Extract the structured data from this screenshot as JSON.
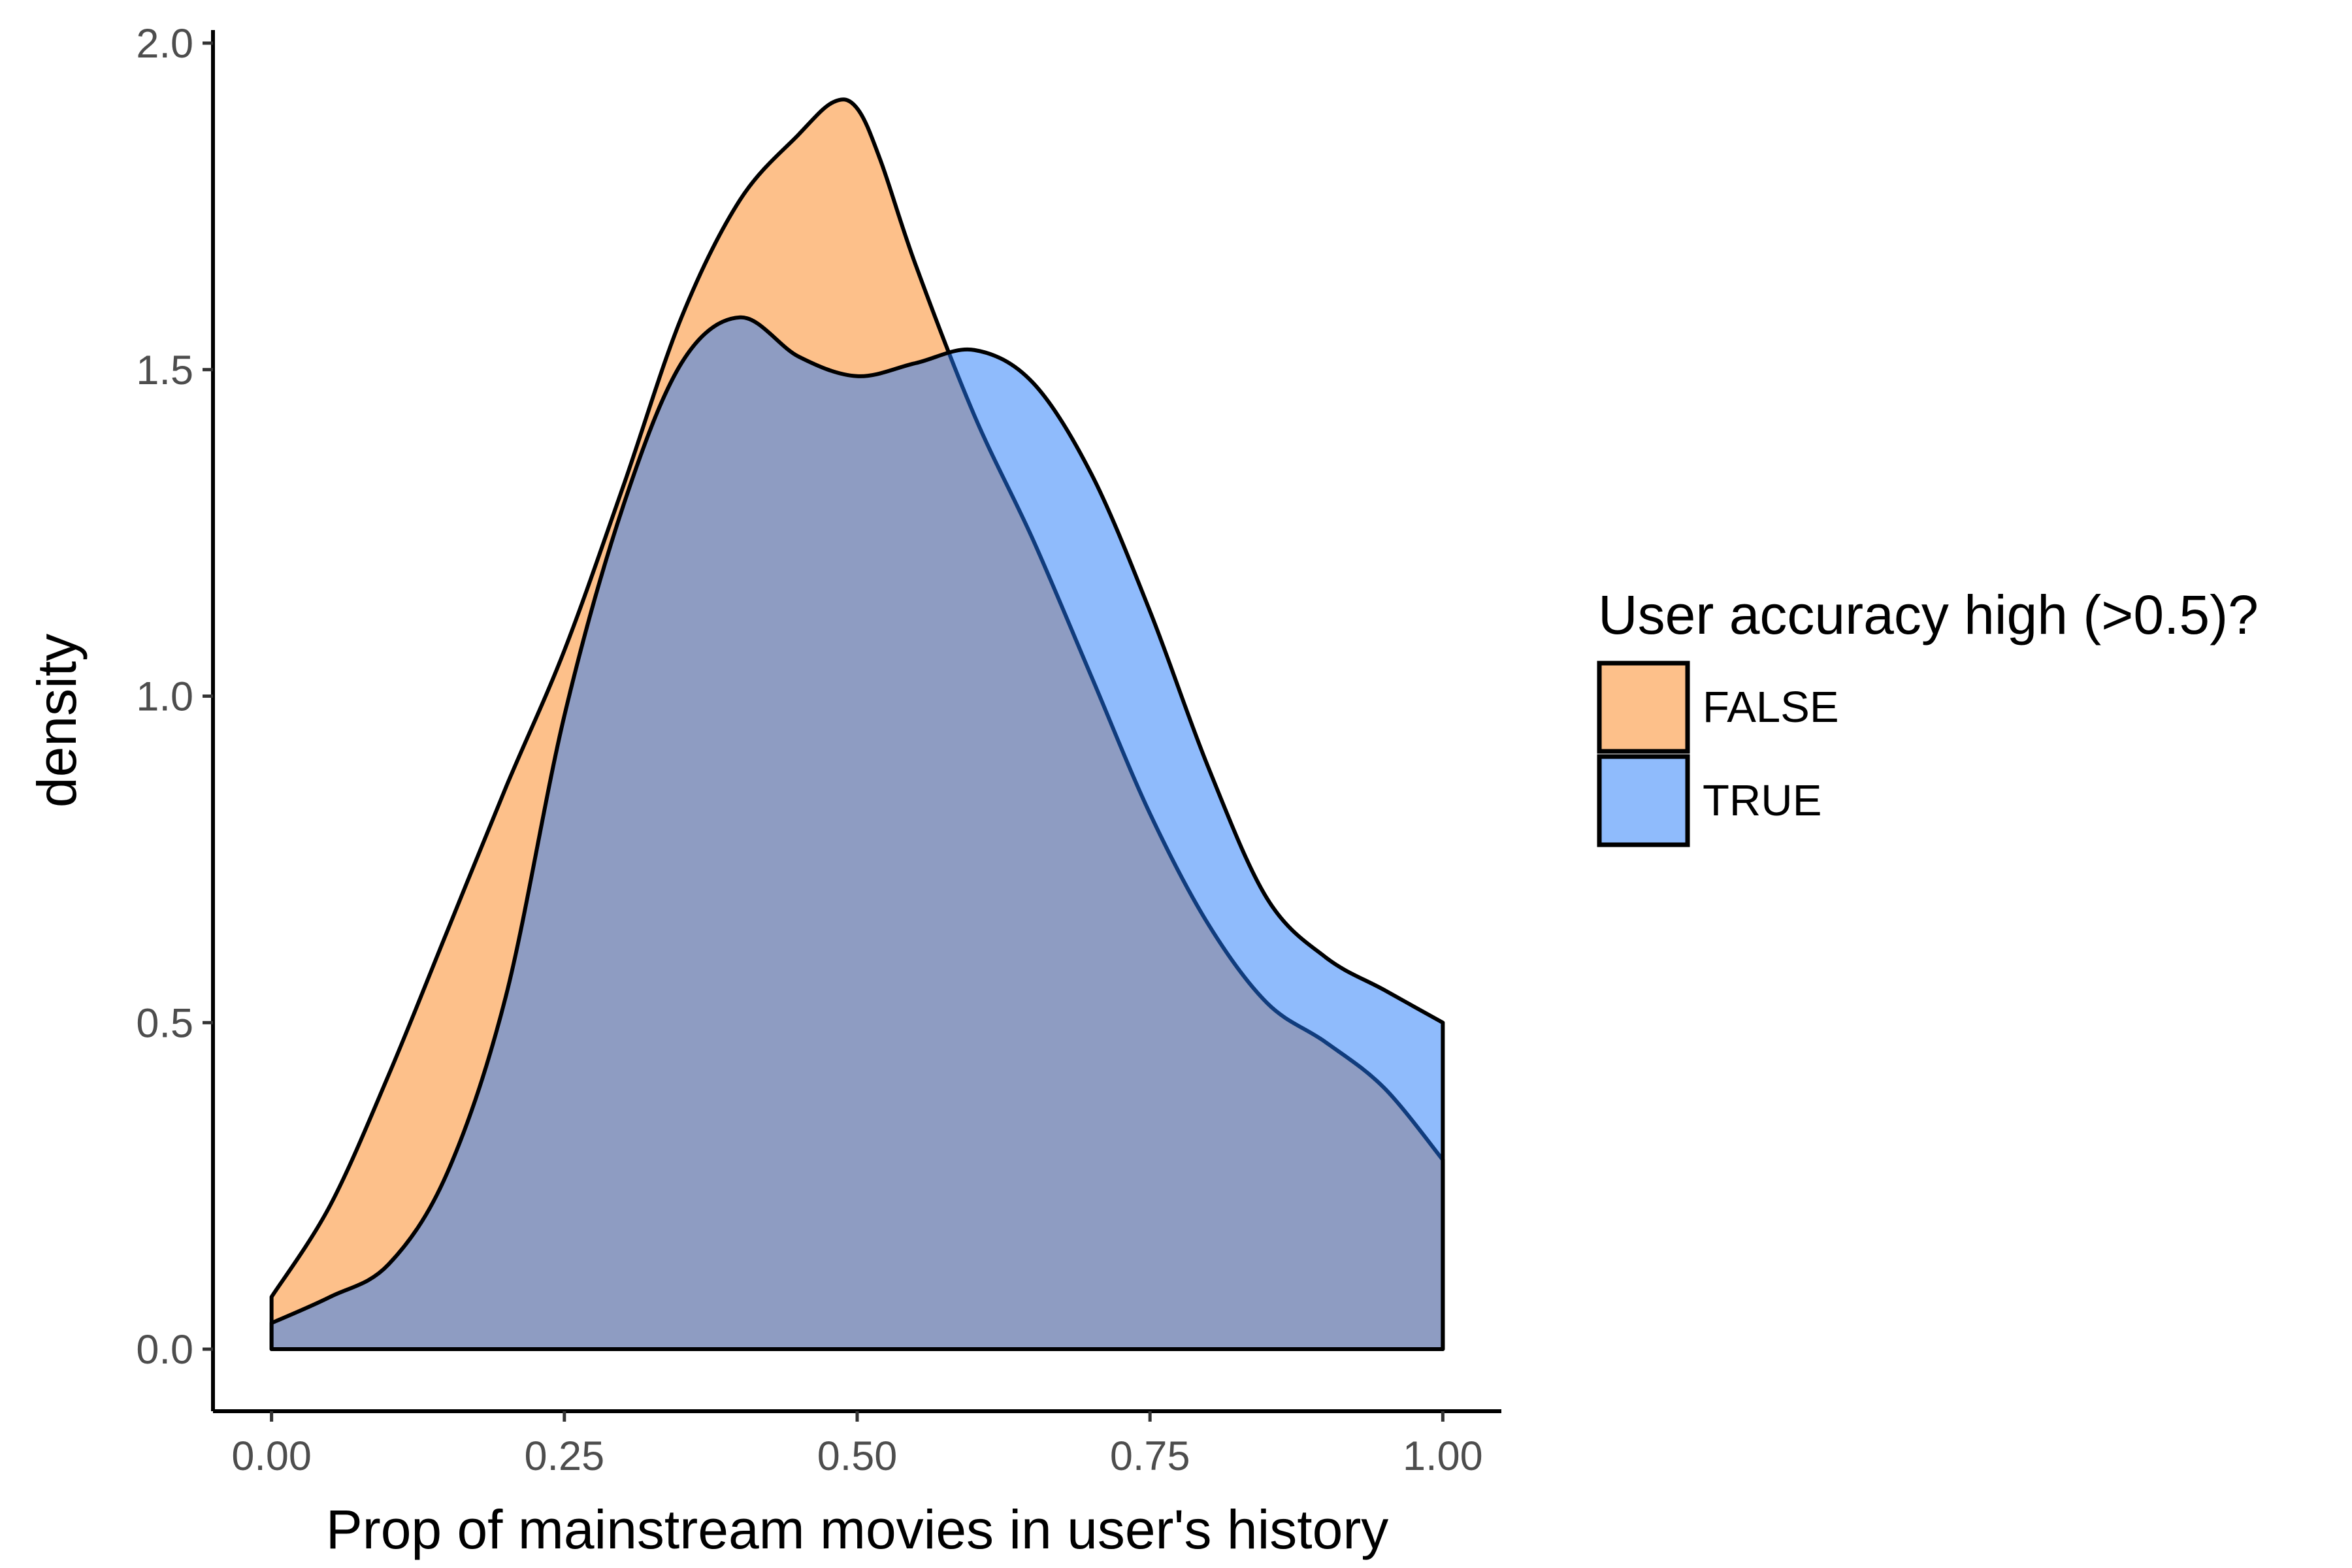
{
  "chart_data": {
    "type": "area",
    "subtype": "density",
    "xlabel": "Prop of mainstream movies in user's history",
    "ylabel": "density",
    "xlim": [
      -0.05,
      1.05
    ],
    "ylim": [
      -0.095,
      2.02
    ],
    "x_ticks": [
      {
        "value": 0.0,
        "label": "0.00"
      },
      {
        "value": 0.25,
        "label": "0.25"
      },
      {
        "value": 0.5,
        "label": "0.50"
      },
      {
        "value": 0.75,
        "label": "0.75"
      },
      {
        "value": 1.0,
        "label": "1.00"
      }
    ],
    "y_ticks": [
      {
        "value": 0.0,
        "label": "0.0"
      },
      {
        "value": 0.5,
        "label": "0.5"
      },
      {
        "value": 1.0,
        "label": "1.0"
      },
      {
        "value": 1.5,
        "label": "1.5"
      },
      {
        "value": 2.0,
        "label": "2.0"
      }
    ],
    "grid": false,
    "legend": {
      "title": "User accuracy high (>0.5)?",
      "position": "right"
    },
    "series": [
      {
        "name": "FALSE",
        "color": "#fc8d29",
        "opacity": 0.55,
        "x": [
          0.0,
          0.05,
          0.1,
          0.15,
          0.2,
          0.25,
          0.3,
          0.35,
          0.4,
          0.45,
          0.48,
          0.5,
          0.52,
          0.55,
          0.6,
          0.65,
          0.7,
          0.75,
          0.8,
          0.85,
          0.9,
          0.95,
          1.0
        ],
        "y": [
          0.08,
          0.22,
          0.42,
          0.64,
          0.86,
          1.07,
          1.32,
          1.58,
          1.76,
          1.86,
          1.91,
          1.9,
          1.82,
          1.66,
          1.43,
          1.24,
          1.03,
          0.82,
          0.65,
          0.53,
          0.47,
          0.4,
          0.29
        ]
      },
      {
        "name": "TRUE",
        "color": "#1f78fa",
        "opacity": 0.5,
        "x": [
          0.0,
          0.05,
          0.1,
          0.15,
          0.2,
          0.25,
          0.3,
          0.35,
          0.4,
          0.45,
          0.5,
          0.55,
          0.6,
          0.65,
          0.7,
          0.75,
          0.8,
          0.85,
          0.9,
          0.95,
          1.0
        ],
        "y": [
          0.04,
          0.08,
          0.13,
          0.27,
          0.54,
          0.97,
          1.29,
          1.51,
          1.58,
          1.52,
          1.49,
          1.51,
          1.53,
          1.48,
          1.34,
          1.13,
          0.89,
          0.69,
          0.6,
          0.55,
          0.5
        ]
      }
    ]
  }
}
